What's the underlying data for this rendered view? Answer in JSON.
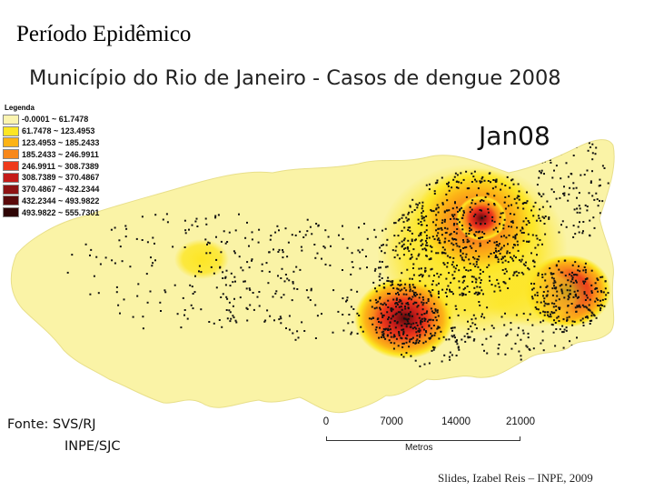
{
  "slide": {
    "title": "Período Epidêmico",
    "credit": "Slides, Izabel Reis – INPE, 2009"
  },
  "map": {
    "title": "Município do Rio de Janeiro - Casos de dengue 2008",
    "month": "Jan08",
    "base_color": "#faf3a6",
    "legend": {
      "title": "Legenda",
      "classes": [
        {
          "label": "-0.0001 ~ 61.7478",
          "color": "#fbf4b0"
        },
        {
          "label": "61.7478 ~ 123.4953",
          "color": "#fde625"
        },
        {
          "label": "123.4953 ~ 185.2433",
          "color": "#fcb316"
        },
        {
          "label": "185.2433 ~ 246.9911",
          "color": "#f8881b"
        },
        {
          "label": "246.9911 ~ 308.7389",
          "color": "#ee3a1b"
        },
        {
          "label": "308.7389 ~ 370.4867",
          "color": "#c41c1a"
        },
        {
          "label": "370.4867 ~ 432.2344",
          "color": "#8e1314"
        },
        {
          "label": "432.2344 ~ 493.9822",
          "color": "#5a0a0b"
        },
        {
          "label": "493.9822 ~ 555.7301",
          "color": "#2e0505"
        }
      ]
    },
    "source": {
      "label": "Fonte:",
      "lines": [
        "SVS/RJ",
        "INPE/SJC"
      ]
    },
    "scale": {
      "ticks": [
        "0",
        "7000",
        "14000",
        "21000"
      ],
      "unit": "Metros"
    },
    "hotspots": [
      {
        "name": "west-cluster",
        "intensity": "low"
      },
      {
        "name": "central-south-cluster",
        "intensity": "high"
      },
      {
        "name": "north-cluster",
        "intensity": "high"
      },
      {
        "name": "east-cluster",
        "intensity": "high"
      }
    ]
  }
}
